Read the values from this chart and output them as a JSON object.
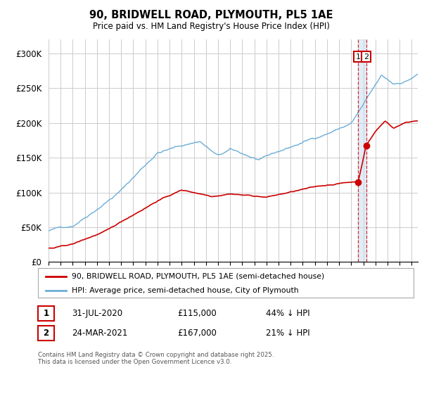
{
  "title": "90, BRIDWELL ROAD, PLYMOUTH, PL5 1AE",
  "subtitle": "Price paid vs. HM Land Registry's House Price Index (HPI)",
  "ylim": [
    0,
    320000
  ],
  "yticks": [
    0,
    50000,
    100000,
    150000,
    200000,
    250000,
    300000
  ],
  "ytick_labels": [
    "£0",
    "£50K",
    "£100K",
    "£150K",
    "£200K",
    "£250K",
    "£300K"
  ],
  "background_color": "#ffffff",
  "plot_bg_color": "#ffffff",
  "line1_color": "#cc0000",
  "line2_color": "#6baed6",
  "legend_entry1": "90, BRIDWELL ROAD, PLYMOUTH, PL5 1AE (semi-detached house)",
  "legend_entry2": "HPI: Average price, semi-detached house, City of Plymouth",
  "annotation1_num": "1",
  "annotation1_date": "31-JUL-2020",
  "annotation1_price": "£115,000",
  "annotation1_hpi": "44% ↓ HPI",
  "annotation2_num": "2",
  "annotation2_date": "24-MAR-2021",
  "annotation2_price": "£167,000",
  "annotation2_hpi": "21% ↓ HPI",
  "footer": "Contains HM Land Registry data © Crown copyright and database right 2025.\nThis data is licensed under the Open Government Licence v3.0.",
  "sale1_x": 2020.58,
  "sale1_y": 115000,
  "sale2_x": 2021.23,
  "sale2_y": 167000,
  "xmin": 1995,
  "xmax": 2025.5
}
